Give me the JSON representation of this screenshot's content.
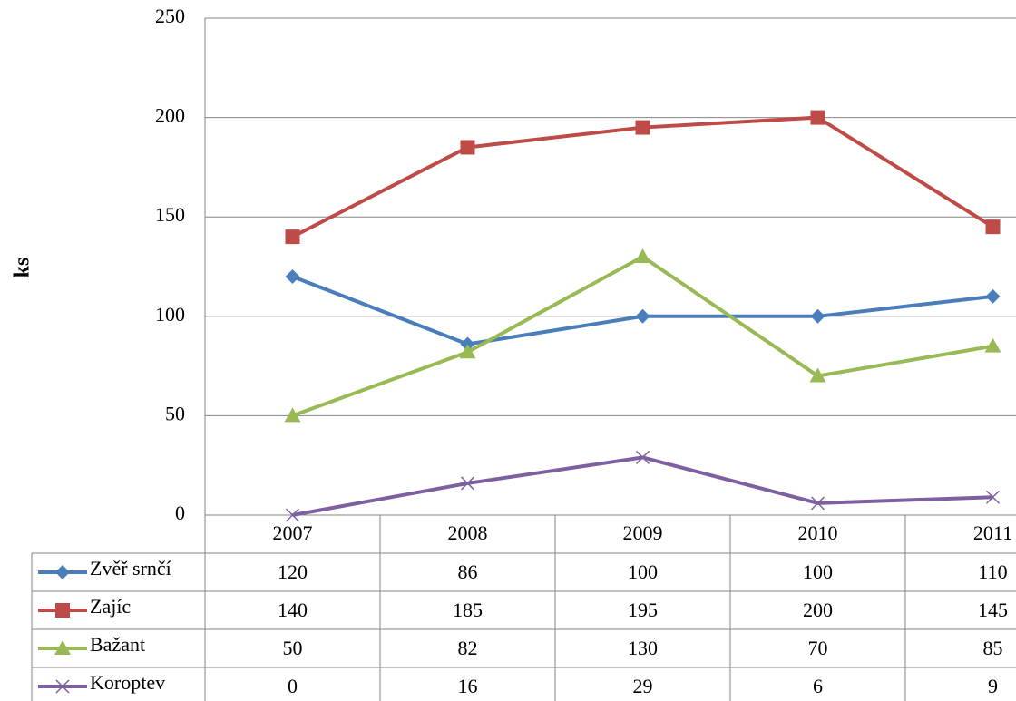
{
  "chart_data": {
    "type": "line",
    "y_label": "ks",
    "categories": [
      "2007",
      "2008",
      "2009",
      "2010",
      "2011"
    ],
    "series": [
      {
        "name": "Zvěř srnčí",
        "color": "#4a7ebb",
        "marker": "diamond",
        "values": [
          120,
          86,
          100,
          100,
          110
        ]
      },
      {
        "name": "Zajíc",
        "color": "#be4b48",
        "marker": "square",
        "values": [
          140,
          185,
          195,
          200,
          145
        ]
      },
      {
        "name": "Bažant",
        "color": "#98b954",
        "marker": "triangle",
        "values": [
          50,
          82,
          130,
          70,
          85
        ]
      },
      {
        "name": "Koroptev",
        "color": "#7d60a0",
        "marker": "x",
        "values": [
          0,
          16,
          29,
          6,
          9
        ]
      }
    ],
    "ylim": [
      0,
      250
    ],
    "yticks": [
      0,
      50,
      100,
      150,
      200,
      250
    ],
    "grid": true,
    "data_table": true
  }
}
